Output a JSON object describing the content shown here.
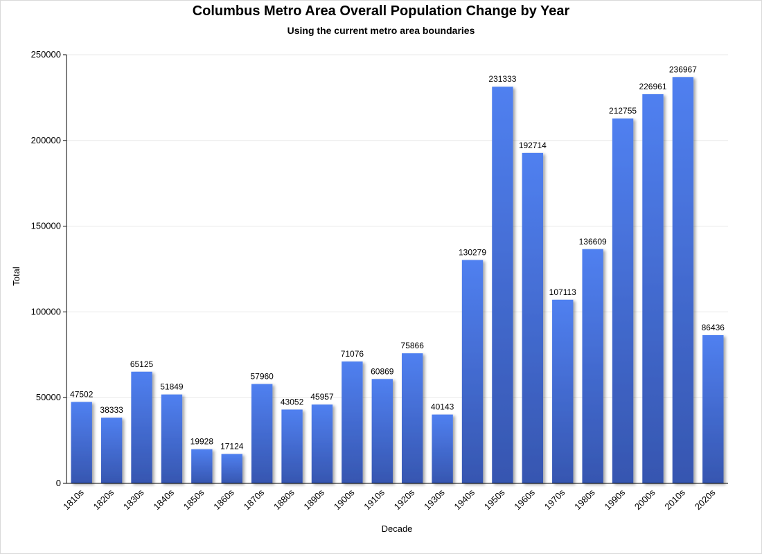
{
  "chart_data": {
    "type": "bar",
    "title": "Columbus Metro Area Overall Population Change by Year",
    "subtitle": "Using the current metro area boundaries",
    "xlabel": "Decade",
    "ylabel": "Total",
    "ylim": [
      0,
      250000
    ],
    "yticks": [
      0,
      50000,
      100000,
      150000,
      200000,
      250000
    ],
    "grid": true,
    "categories": [
      "1810s",
      "1820s",
      "1830s",
      "1840s",
      "1850s",
      "1860s",
      "1870s",
      "1880s",
      "1890s",
      "1900s",
      "1910s",
      "1920s",
      "1930s",
      "1940s",
      "1950s",
      "1960s",
      "1970s",
      "1980s",
      "1990s",
      "2000s",
      "2010s",
      "2020s"
    ],
    "values": [
      47502,
      38333,
      65125,
      51849,
      19928,
      17124,
      57960,
      43052,
      45957,
      71076,
      60869,
      75866,
      40143,
      130279,
      231333,
      192714,
      107113,
      136609,
      212755,
      226961,
      236967,
      86436
    ],
    "colors": {
      "bar_top": "#5080f0",
      "bar_bottom": "#3656b0",
      "axis": "#000000",
      "grid": "#e8e8e8"
    }
  }
}
